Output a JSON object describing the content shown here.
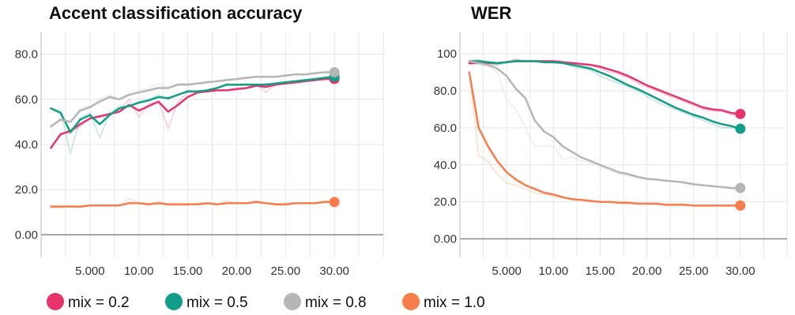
{
  "chart_data": [
    {
      "type": "line",
      "title": "Accent classification accuracy",
      "xlabel": "",
      "ylabel": "",
      "xlim": [
        0,
        35
      ],
      "ylim": [
        -10,
        90
      ],
      "yticks": [
        0,
        20,
        40,
        60,
        80
      ],
      "ytick_labels": [
        "0.00",
        "20.0",
        "40.0",
        "60.0",
        "80.0"
      ],
      "xticks": [
        5,
        10,
        15,
        20,
        25,
        30
      ],
      "xtick_labels": [
        "5.000",
        "10.00",
        "15.00",
        "20.00",
        "25.00",
        "30.00"
      ],
      "grid": true,
      "series": [
        {
          "name": "mix = 0.2",
          "color": "#e8336d",
          "x": [
            1,
            2,
            3,
            4,
            5,
            6,
            7,
            8,
            9,
            10,
            11,
            12,
            13,
            14,
            15,
            16,
            17,
            18,
            19,
            20,
            21,
            22,
            23,
            24,
            25,
            26,
            27,
            28,
            29,
            30
          ],
          "values": [
            38.5,
            44.5,
            46,
            49,
            51.5,
            52.5,
            53.5,
            54.5,
            57.5,
            55,
            57,
            59,
            54.5,
            57.5,
            61,
            63,
            63.5,
            64,
            64,
            64.5,
            65,
            66,
            65.5,
            66.5,
            67,
            67.5,
            68,
            68.5,
            69,
            69
          ],
          "raw": [
            38,
            45,
            45,
            48,
            52,
            52,
            53,
            55,
            60,
            52,
            58,
            59,
            47,
            59,
            63,
            63,
            64,
            64,
            64,
            65,
            65,
            67,
            63,
            67,
            67,
            67,
            68,
            69,
            69,
            69
          ]
        },
        {
          "name": "mix = 0.5",
          "color": "#129d88",
          "x": [
            1,
            2,
            3,
            4,
            5,
            6,
            7,
            8,
            9,
            10,
            11,
            12,
            13,
            14,
            15,
            16,
            17,
            18,
            19,
            20,
            21,
            22,
            23,
            24,
            25,
            26,
            27,
            28,
            29,
            30
          ],
          "values": [
            56,
            54,
            45.5,
            51,
            53,
            49,
            53,
            56,
            57,
            58.5,
            59.5,
            61,
            60.5,
            62,
            63.5,
            63.5,
            64,
            65,
            66.5,
            66.5,
            66.5,
            66.5,
            66.5,
            67,
            67.5,
            68,
            68.5,
            69,
            69.5,
            70
          ],
          "raw": [
            56,
            55,
            36,
            52,
            54,
            43,
            54,
            57,
            57,
            59,
            60,
            62,
            60,
            62,
            64,
            63,
            64,
            65,
            67,
            66,
            67,
            66,
            67,
            67,
            67,
            68,
            68,
            69,
            70,
            70
          ]
        },
        {
          "name": "mix = 0.8",
          "color": "#b6b6b6",
          "x": [
            1,
            2,
            3,
            4,
            5,
            6,
            7,
            8,
            9,
            10,
            11,
            12,
            13,
            14,
            15,
            16,
            17,
            18,
            19,
            20,
            21,
            22,
            23,
            24,
            25,
            26,
            27,
            28,
            29,
            30
          ],
          "values": [
            48,
            51,
            50,
            55,
            56.5,
            59,
            61,
            60,
            62,
            63,
            64,
            65,
            65,
            66.5,
            66.5,
            67,
            67.5,
            68,
            68.5,
            69,
            69.5,
            70,
            70,
            70,
            70.5,
            71,
            71,
            71.5,
            72,
            72
          ],
          "raw": [
            47,
            52,
            50,
            56,
            57,
            60,
            62,
            60,
            63,
            64,
            65,
            67,
            65,
            67,
            67,
            67,
            68,
            68,
            69,
            69,
            70,
            70,
            70,
            70,
            71,
            71,
            71,
            72,
            72,
            72
          ]
        },
        {
          "name": "mix = 1.0",
          "color": "#f97c4c",
          "x": [
            1,
            2,
            3,
            4,
            5,
            6,
            7,
            8,
            9,
            10,
            11,
            12,
            13,
            14,
            15,
            16,
            17,
            18,
            19,
            20,
            21,
            22,
            23,
            24,
            25,
            26,
            27,
            28,
            29,
            30
          ],
          "values": [
            12.5,
            12.5,
            12.5,
            12.5,
            13,
            13,
            13,
            13,
            14,
            14,
            13.5,
            14,
            13.5,
            13.5,
            13.5,
            13.5,
            14,
            13.5,
            14,
            14,
            14,
            14.5,
            14,
            13.5,
            13.5,
            14,
            14,
            14,
            14.5,
            14.5
          ],
          "raw": [
            12,
            12,
            13,
            12,
            13,
            13,
            13,
            13,
            16,
            14,
            13,
            15,
            13,
            13,
            13,
            14,
            14,
            13,
            15,
            14,
            14,
            15,
            14,
            13,
            13,
            14,
            14,
            14,
            15,
            15
          ]
        }
      ]
    },
    {
      "type": "line",
      "title": "WER",
      "xlabel": "",
      "ylabel": "",
      "xlim": [
        0,
        35
      ],
      "ylim": [
        -10,
        112
      ],
      "yticks": [
        0,
        20,
        40,
        60,
        80,
        100
      ],
      "ytick_labels": [
        "0.00",
        "20.0",
        "40.0",
        "60.0",
        "80.0",
        "100"
      ],
      "xticks": [
        5,
        10,
        15,
        20,
        25,
        30
      ],
      "xtick_labels": [
        "5.000",
        "10.00",
        "15.00",
        "20.00",
        "25.00",
        "30.00"
      ],
      "grid": true,
      "series": [
        {
          "name": "mix = 0.2",
          "color": "#e8336d",
          "x": [
            1,
            2,
            3,
            4,
            5,
            6,
            7,
            8,
            9,
            10,
            11,
            12,
            13,
            14,
            15,
            16,
            17,
            18,
            19,
            20,
            21,
            22,
            23,
            24,
            25,
            26,
            27,
            28,
            29,
            30
          ],
          "values": [
            95,
            95,
            95,
            95,
            95.5,
            96,
            96,
            96,
            96,
            96,
            95.5,
            95,
            94.5,
            94,
            93,
            91.5,
            90,
            88,
            85.5,
            83,
            81,
            79,
            77,
            75,
            73,
            71,
            70,
            69.5,
            68,
            67.5
          ],
          "raw": [
            94,
            95,
            94,
            94,
            96,
            97,
            96,
            96,
            96,
            96,
            95,
            95,
            94,
            94,
            92,
            90,
            89,
            87,
            84,
            82,
            80,
            78,
            76,
            74,
            72,
            70,
            69,
            69,
            67,
            67
          ]
        },
        {
          "name": "mix = 0.5",
          "color": "#129d88",
          "x": [
            1,
            2,
            3,
            4,
            5,
            6,
            7,
            8,
            9,
            10,
            11,
            12,
            13,
            14,
            15,
            16,
            17,
            18,
            19,
            20,
            21,
            22,
            23,
            24,
            25,
            26,
            27,
            28,
            29,
            30
          ],
          "values": [
            96,
            96,
            95.5,
            95,
            95.5,
            96,
            96,
            96,
            95.5,
            95.5,
            95,
            94,
            93,
            92,
            90,
            88,
            85.5,
            83,
            81,
            78.5,
            76,
            73.5,
            71,
            69,
            67,
            65.5,
            63.5,
            62,
            61,
            59.5
          ],
          "raw": [
            96,
            97,
            95,
            94,
            95,
            97,
            96,
            96,
            95,
            95,
            95,
            93,
            92,
            91,
            88,
            86,
            84,
            82,
            80,
            77,
            74,
            72,
            70,
            68,
            66,
            64,
            62,
            60,
            60,
            59
          ]
        },
        {
          "name": "mix = 0.8",
          "color": "#b6b6b6",
          "x": [
            1,
            2,
            3,
            4,
            5,
            6,
            7,
            8,
            9,
            10,
            11,
            12,
            13,
            14,
            15,
            16,
            17,
            18,
            19,
            20,
            21,
            22,
            23,
            24,
            25,
            26,
            27,
            28,
            29,
            30
          ],
          "values": [
            96,
            95,
            94,
            92,
            88,
            81,
            76,
            64,
            58,
            55,
            50,
            47,
            44,
            42,
            40,
            38,
            36,
            35,
            33.5,
            32.5,
            32,
            31.5,
            31,
            30.5,
            29.5,
            29,
            28.5,
            28,
            27.5,
            27.5
          ],
          "raw": [
            96,
            94,
            93,
            90,
            75,
            70,
            60,
            50,
            50,
            50,
            43,
            44,
            42,
            41,
            39,
            37,
            35,
            34,
            33,
            32,
            32,
            31,
            31,
            30,
            29,
            29,
            28,
            28,
            27,
            27
          ]
        },
        {
          "name": "mix = 1.0",
          "color": "#f97c4c",
          "x": [
            1,
            2,
            3,
            4,
            5,
            6,
            7,
            8,
            9,
            10,
            11,
            12,
            13,
            14,
            15,
            16,
            17,
            18,
            19,
            20,
            21,
            22,
            23,
            24,
            25,
            26,
            27,
            28,
            29,
            30
          ],
          "values": [
            90,
            60,
            50,
            42,
            36,
            32,
            29,
            27,
            25,
            24,
            22.5,
            21.5,
            21,
            20.5,
            20,
            20,
            19.5,
            19.5,
            19,
            19,
            19,
            18.5,
            18.5,
            18.5,
            18,
            18,
            18,
            18,
            18,
            18
          ],
          "raw": [
            90,
            45,
            42,
            35,
            30,
            29,
            27,
            25,
            24,
            23,
            22,
            21,
            21,
            20,
            20,
            20,
            19,
            19,
            19,
            19,
            19,
            18,
            18,
            18,
            18,
            18,
            18,
            18,
            18,
            18
          ]
        }
      ]
    }
  ]
}
